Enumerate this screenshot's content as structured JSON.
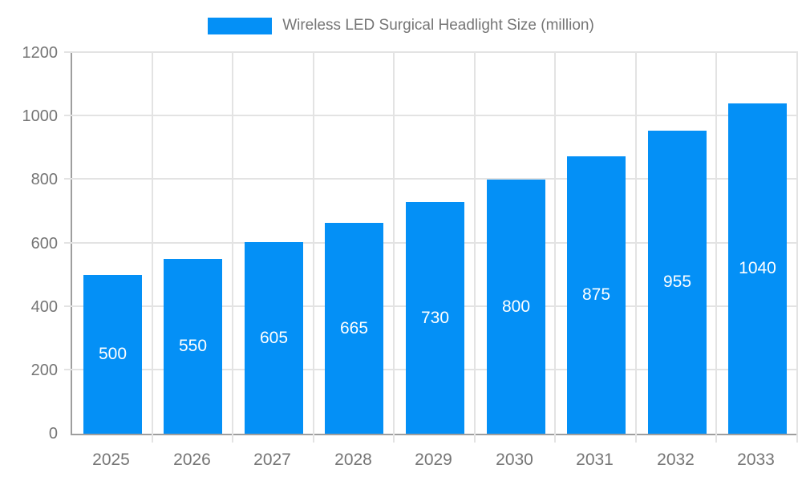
{
  "chart_data": {
    "type": "bar",
    "title": "Wireless LED Surgical Headlight Size (million)",
    "categories": [
      "2025",
      "2026",
      "2027",
      "2028",
      "2029",
      "2030",
      "2031",
      "2032",
      "2033"
    ],
    "values": [
      500,
      550,
      605,
      665,
      730,
      800,
      875,
      955,
      1040
    ],
    "xlabel": "",
    "ylabel": "",
    "ylim": [
      0,
      1200
    ],
    "yticks": [
      0,
      200,
      400,
      600,
      800,
      1000,
      1200
    ],
    "grid": true,
    "legend_position": "top",
    "bar_label_position": "inside-middle"
  },
  "colors": {
    "bar": "#0490f6",
    "grid": "#e3e3e3",
    "axis": "#9e9e9e",
    "tick_text": "#757575",
    "bar_label": "#ffffff",
    "background": "#ffffff"
  }
}
